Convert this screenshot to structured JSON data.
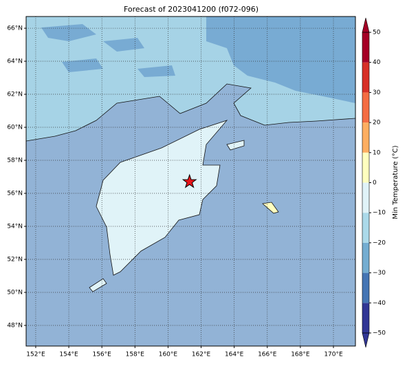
{
  "chart_data": {
    "type": "map",
    "title": "Forecast of 2023041200 (f072-096)",
    "xlim": [
      151.42,
      171.33
    ],
    "ylim": [
      46.75,
      66.71
    ],
    "xticks": [
      {
        "value": 152,
        "label": "152°E"
      },
      {
        "value": 154,
        "label": "154°E"
      },
      {
        "value": 156,
        "label": "156°E"
      },
      {
        "value": 158,
        "label": "158°E"
      },
      {
        "value": 160,
        "label": "160°E"
      },
      {
        "value": 162,
        "label": "162°E"
      },
      {
        "value": 164,
        "label": "164°E"
      },
      {
        "value": 166,
        "label": "166°E"
      },
      {
        "value": 168,
        "label": "168°E"
      },
      {
        "value": 170,
        "label": "170°E"
      }
    ],
    "yticks": [
      {
        "value": 48,
        "label": "48°N"
      },
      {
        "value": 50,
        "label": "50°N"
      },
      {
        "value": 52,
        "label": "52°N"
      },
      {
        "value": 54,
        "label": "54°N"
      },
      {
        "value": 56,
        "label": "56°N"
      },
      {
        "value": 58,
        "label": "58°N"
      },
      {
        "value": 60,
        "label": "60°N"
      },
      {
        "value": 62,
        "label": "62°N"
      },
      {
        "value": 64,
        "label": "64°N"
      },
      {
        "value": 66,
        "label": "66°N"
      }
    ],
    "grid": true,
    "marker": {
      "lon": 161.3,
      "lat": 56.7,
      "color": "#e8141a"
    },
    "colorbar": {
      "label": "Min Temperature (°C)",
      "lim": [
        -50,
        50
      ],
      "ticks": [
        {
          "value": -50,
          "label": "−50"
        },
        {
          "value": -40,
          "label": "−40"
        },
        {
          "value": -30,
          "label": "−30"
        },
        {
          "value": -20,
          "label": "−20"
        },
        {
          "value": -10,
          "label": "−10"
        },
        0,
        10,
        20,
        30,
        40,
        50
      ],
      "colors": [
        "#313695",
        "#4575b4",
        "#74add1",
        "#abd9e9",
        "#e0f3f8",
        "#ffffbf",
        "#fdae61",
        "#f46d43",
        "#d73027",
        "#a50026"
      ]
    }
  }
}
